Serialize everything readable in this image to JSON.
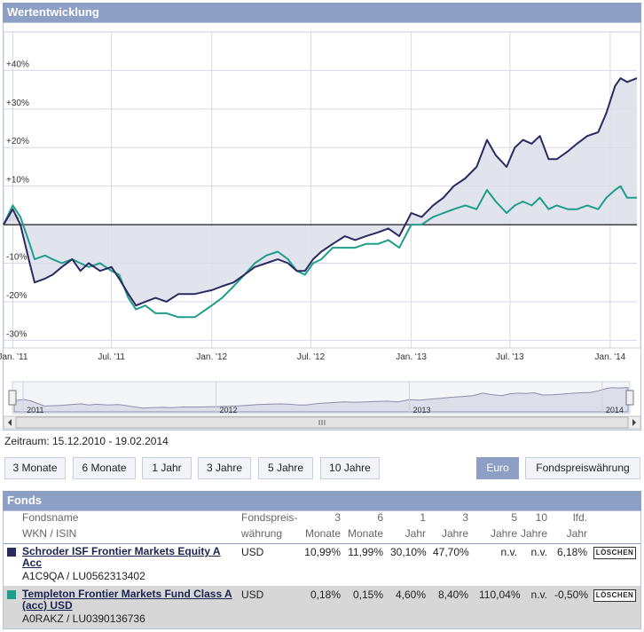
{
  "header": {
    "title": "Wertentwicklung"
  },
  "colors": {
    "series1": "#2a2a63",
    "series2": "#1e9e8a",
    "header_bg": "#8d9fc5",
    "area_fill": "#dcdeea"
  },
  "chart_data": {
    "type": "line",
    "x_axis_labels": [
      "Jan. '11",
      "Jul. '11",
      "Jan. '12",
      "Jul. '12",
      "Jan. '13",
      "Jul. '13",
      "Jan. '14"
    ],
    "y_tick_labels": [
      "+40%",
      "+30%",
      "+20%",
      "+10%",
      "0%",
      "-10%",
      "-20%",
      "-30%"
    ],
    "y_ticks": [
      40,
      30,
      20,
      10,
      0,
      -10,
      -20,
      -30
    ],
    "ylim": [
      -32,
      50
    ],
    "xlim": [
      "2010-12-15",
      "2014-02-19"
    ],
    "grid": true,
    "series": [
      {
        "name": "Schroder ISF Frontier Markets Equity A Acc",
        "points": [
          [
            "2010-12-15",
            0
          ],
          [
            "2011-01-01",
            4
          ],
          [
            "2011-01-15",
            0
          ],
          [
            "2011-02-01",
            -10
          ],
          [
            "2011-02-10",
            -15
          ],
          [
            "2011-03-01",
            -14
          ],
          [
            "2011-03-15",
            -13
          ],
          [
            "2011-04-01",
            -11
          ],
          [
            "2011-04-20",
            -9
          ],
          [
            "2011-05-05",
            -12
          ],
          [
            "2011-05-20",
            -10
          ],
          [
            "2011-06-10",
            -12
          ],
          [
            "2011-07-01",
            -11
          ],
          [
            "2011-07-15",
            -14
          ],
          [
            "2011-08-01",
            -18
          ],
          [
            "2011-08-15",
            -21
          ],
          [
            "2011-09-01",
            -20
          ],
          [
            "2011-09-20",
            -19
          ],
          [
            "2011-10-10",
            -20
          ],
          [
            "2011-11-01",
            -18
          ],
          [
            "2011-12-01",
            -18
          ],
          [
            "2012-01-01",
            -17
          ],
          [
            "2012-01-20",
            -16
          ],
          [
            "2012-02-10",
            -15
          ],
          [
            "2012-03-01",
            -13
          ],
          [
            "2012-03-20",
            -11
          ],
          [
            "2012-04-10",
            -10
          ],
          [
            "2012-05-01",
            -9
          ],
          [
            "2012-05-20",
            -10
          ],
          [
            "2012-06-05",
            -12
          ],
          [
            "2012-06-20",
            -12
          ],
          [
            "2012-07-05",
            -9
          ],
          [
            "2012-07-20",
            -7
          ],
          [
            "2012-08-10",
            -5
          ],
          [
            "2012-09-01",
            -3
          ],
          [
            "2012-09-20",
            -4
          ],
          [
            "2012-10-10",
            -3
          ],
          [
            "2012-11-01",
            -2
          ],
          [
            "2012-11-20",
            -1
          ],
          [
            "2012-12-10",
            -3
          ],
          [
            "2013-01-01",
            3
          ],
          [
            "2013-01-20",
            2
          ],
          [
            "2013-02-10",
            5
          ],
          [
            "2013-03-01",
            7
          ],
          [
            "2013-03-20",
            10
          ],
          [
            "2013-04-10",
            12
          ],
          [
            "2013-05-01",
            15
          ],
          [
            "2013-05-20",
            22
          ],
          [
            "2013-06-05",
            18
          ],
          [
            "2013-06-25",
            15
          ],
          [
            "2013-07-10",
            20
          ],
          [
            "2013-07-25",
            22
          ],
          [
            "2013-08-10",
            21
          ],
          [
            "2013-08-25",
            23
          ],
          [
            "2013-09-10",
            17
          ],
          [
            "2013-09-25",
            17
          ],
          [
            "2013-10-15",
            19
          ],
          [
            "2013-11-01",
            21
          ],
          [
            "2013-11-20",
            23
          ],
          [
            "2013-12-10",
            24
          ],
          [
            "2013-12-25",
            29
          ],
          [
            "2014-01-10",
            36
          ],
          [
            "2014-01-20",
            38
          ],
          [
            "2014-02-01",
            37
          ],
          [
            "2014-02-19",
            38
          ]
        ]
      },
      {
        "name": "Templeton Frontier Markets Fund Class A (acc) USD",
        "points": [
          [
            "2010-12-15",
            0
          ],
          [
            "2011-01-01",
            5
          ],
          [
            "2011-01-15",
            2
          ],
          [
            "2011-02-01",
            -5
          ],
          [
            "2011-02-10",
            -9
          ],
          [
            "2011-03-01",
            -8
          ],
          [
            "2011-03-15",
            -9
          ],
          [
            "2011-04-01",
            -10
          ],
          [
            "2011-04-20",
            -9
          ],
          [
            "2011-05-05",
            -10
          ],
          [
            "2011-05-20",
            -11
          ],
          [
            "2011-06-10",
            -10
          ],
          [
            "2011-07-01",
            -12
          ],
          [
            "2011-07-15",
            -13
          ],
          [
            "2011-08-01",
            -19
          ],
          [
            "2011-08-15",
            -22
          ],
          [
            "2011-09-01",
            -21
          ],
          [
            "2011-09-20",
            -23
          ],
          [
            "2011-10-10",
            -23
          ],
          [
            "2011-11-01",
            -24
          ],
          [
            "2011-12-01",
            -24
          ],
          [
            "2012-01-01",
            -21
          ],
          [
            "2012-01-20",
            -19
          ],
          [
            "2012-02-10",
            -16
          ],
          [
            "2012-03-01",
            -13
          ],
          [
            "2012-03-20",
            -10
          ],
          [
            "2012-04-10",
            -8
          ],
          [
            "2012-05-01",
            -7
          ],
          [
            "2012-05-20",
            -9
          ],
          [
            "2012-06-05",
            -12
          ],
          [
            "2012-06-20",
            -13
          ],
          [
            "2012-07-05",
            -10
          ],
          [
            "2012-07-20",
            -9
          ],
          [
            "2012-08-10",
            -6
          ],
          [
            "2012-09-01",
            -6
          ],
          [
            "2012-09-20",
            -6
          ],
          [
            "2012-10-10",
            -5
          ],
          [
            "2012-11-01",
            -5
          ],
          [
            "2012-11-20",
            -4
          ],
          [
            "2012-12-10",
            -6
          ],
          [
            "2013-01-01",
            0
          ],
          [
            "2013-01-20",
            0
          ],
          [
            "2013-02-10",
            2
          ],
          [
            "2013-03-01",
            3
          ],
          [
            "2013-03-20",
            4
          ],
          [
            "2013-04-10",
            5
          ],
          [
            "2013-05-01",
            4
          ],
          [
            "2013-05-20",
            9
          ],
          [
            "2013-06-05",
            6
          ],
          [
            "2013-06-25",
            3
          ],
          [
            "2013-07-10",
            5
          ],
          [
            "2013-07-25",
            6
          ],
          [
            "2013-08-10",
            5
          ],
          [
            "2013-08-25",
            7
          ],
          [
            "2013-09-10",
            4
          ],
          [
            "2013-09-25",
            5
          ],
          [
            "2013-10-15",
            4
          ],
          [
            "2013-11-01",
            4
          ],
          [
            "2013-11-20",
            5
          ],
          [
            "2013-12-10",
            4
          ],
          [
            "2013-12-25",
            7
          ],
          [
            "2014-01-10",
            9
          ],
          [
            "2014-01-20",
            10
          ],
          [
            "2014-02-01",
            7
          ],
          [
            "2014-02-19",
            7
          ]
        ]
      }
    ]
  },
  "navigator": {
    "year_labels": [
      "2011",
      "2012",
      "2013",
      "2014"
    ]
  },
  "zeitraum": "Zeitraum: 15.12.2010 - 19.02.2014",
  "periods": [
    "3 Monate",
    "6 Monate",
    "1 Jahr",
    "3 Jahre",
    "5 Jahre",
    "10 Jahre"
  ],
  "currency": {
    "euro": "Euro",
    "fund": "Fondspreiswährung"
  },
  "fonds": {
    "title": "Fonds",
    "headers": {
      "fondsname": "Fondsname",
      "wkn_isin": "WKN / ISIN",
      "fondspreis": "Fondspreis-",
      "waehrung": "währung",
      "m3a": "3",
      "m3b": "Monate",
      "m6a": "6",
      "m6b": "Monate",
      "j1a": "1",
      "j1b": "Jahr",
      "j3a": "3",
      "j3b": "Jahre",
      "j5a": "5",
      "j5b": "Jahre",
      "j10a": "10",
      "j10b": "Jahre",
      "lfda": "lfd.",
      "lfdb": "Jahr"
    },
    "rows": [
      {
        "name_l1": "Schroder ISF Frontier Markets Equity A",
        "name_l2": "Acc",
        "wkn": "A1C9QA / LU0562313402",
        "currency": "USD",
        "m3": "10,99%",
        "m6": "11,99%",
        "j1": "30,10%",
        "j3": "47,70%",
        "j5": "n.v.",
        "j10": "n.v.",
        "lfd": "6,18%",
        "action": "LÖSCHEN"
      },
      {
        "name_l1": "Templeton Frontier Markets Fund Class A",
        "name_l2": "(acc) USD",
        "wkn": "A0RAKZ / LU0390136736",
        "currency": "USD",
        "m3": "0,18%",
        "m6": "0,15%",
        "j1": "4,60%",
        "j3": "8,40%",
        "j5": "110,04%",
        "j10": "n.v.",
        "lfd": "-0,50%",
        "action": "LÖSCHEN"
      }
    ]
  }
}
